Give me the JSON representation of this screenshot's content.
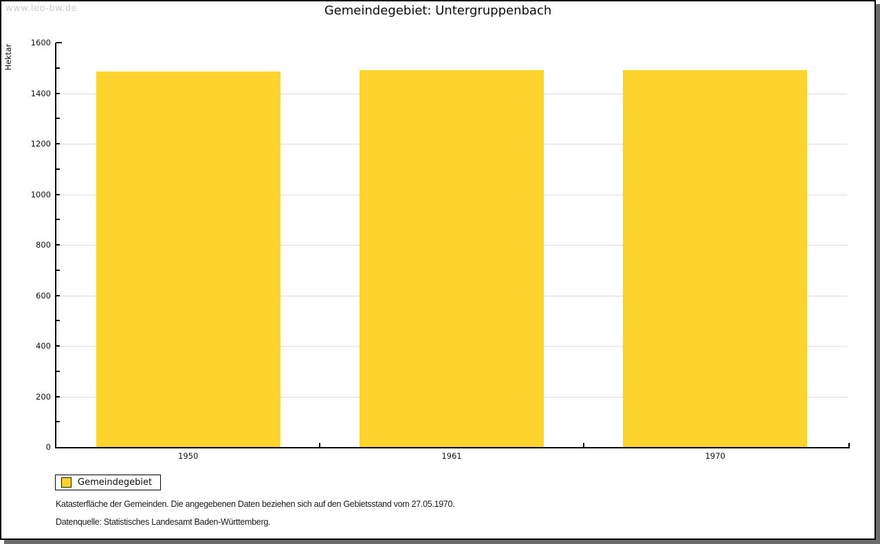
{
  "watermark": "www.leo-bw.de",
  "title": "Gemeindegebiet: Untergruppenbach",
  "chart_data": {
    "type": "bar",
    "title": "Gemeindegebiet: Untergruppenbach",
    "categories": [
      "1950",
      "1961",
      "1970"
    ],
    "series": [
      {
        "name": "Gemeindegebiet",
        "values": [
          1487,
          1490,
          1490
        ]
      }
    ],
    "xlabel": "",
    "ylabel": "Hektar",
    "ylim": [
      0,
      1600
    ],
    "yticks": [
      0,
      200,
      400,
      600,
      800,
      1000,
      1200,
      1400,
      1600
    ],
    "yticks_minor": [
      100,
      300,
      500,
      700,
      900,
      1100,
      1300,
      1500
    ],
    "gridlines": [
      200,
      400,
      600,
      800,
      1000,
      1200,
      1400
    ],
    "grid": "horizontal-major",
    "legend_position": "bottom-left",
    "bar_width_fraction": 0.7
  },
  "legend": {
    "items": [
      {
        "label": "Gemeindegebiet",
        "color": "#fcd42d"
      }
    ]
  },
  "footer": {
    "line1": "Katasterfläche der Gemeinden. Die angegebenen Daten beziehen sich auf den Gebietsstand vom 27.05.1970.",
    "line2": "Datenquelle: Statistisches Landesamt Baden-Württemberg."
  },
  "colors": {
    "bar": "#fcd42d",
    "gridline": "#dcdcdc",
    "axis": "#000000",
    "watermark": "#cccccc",
    "frame_shadow": "#6b6b6b"
  }
}
